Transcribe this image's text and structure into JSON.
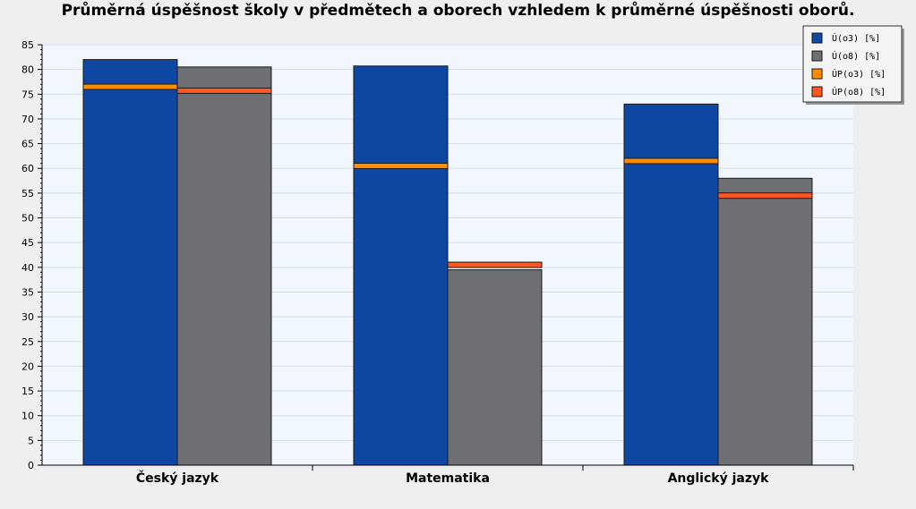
{
  "chart_data": {
    "type": "bar",
    "title": "Průměrná úspěšnost školy v předmětech a oborech vzhledem k průměrné úspěšnosti oborů.",
    "xlabel": "",
    "ylabel": "",
    "ylim": [
      0,
      85
    ],
    "yticks": [
      0,
      5,
      10,
      15,
      20,
      25,
      30,
      35,
      40,
      45,
      50,
      55,
      60,
      65,
      70,
      75,
      80,
      85
    ],
    "grid": true,
    "legend_position": "top-right",
    "categories": [
      "Český jazyk",
      "Matematika",
      "Anglický jazyk"
    ],
    "series": [
      {
        "name": "Ú(o3) [%]",
        "values": [
          82,
          80.7,
          73
        ],
        "color": "#0d47a1",
        "kind": "bar"
      },
      {
        "name": "Ú(o8) [%]",
        "values": [
          80.5,
          39.5,
          58
        ],
        "color": "#6e6f73",
        "kind": "bar"
      },
      {
        "name": "ÚP(o3) [%]",
        "values": [
          76.5,
          60.5,
          61.5
        ],
        "color": "#ff8c00",
        "kind": "marker"
      },
      {
        "name": "ÚP(o8) [%]",
        "values": [
          75.7,
          40.5,
          54.5
        ],
        "color": "#ff5722",
        "kind": "marker"
      }
    ]
  }
}
